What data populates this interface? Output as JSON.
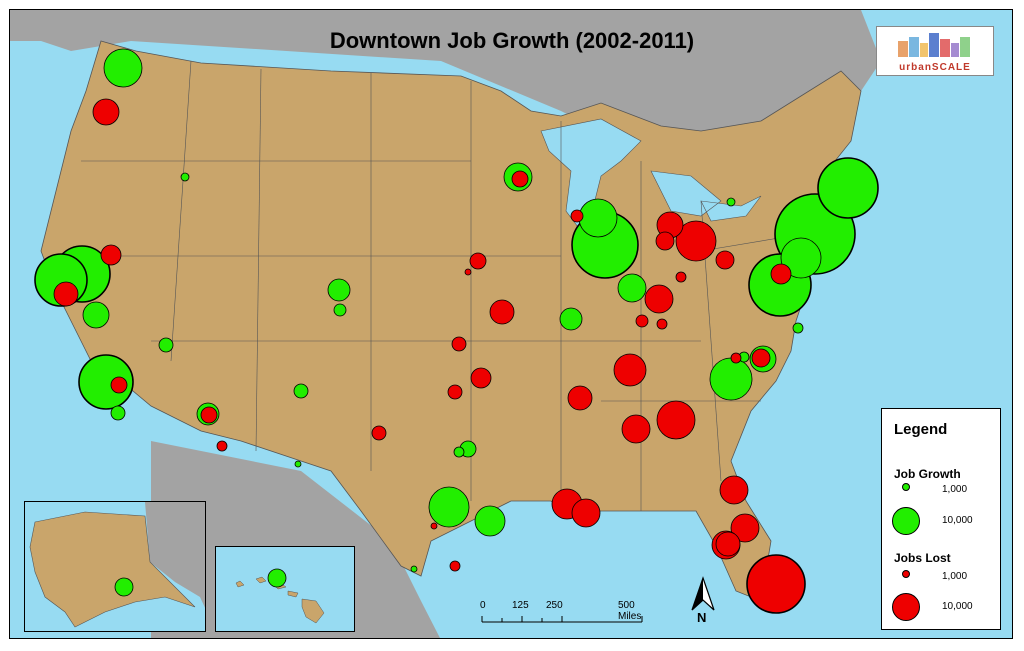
{
  "title": "Downtown Job Growth (2002-2011)",
  "logo": {
    "text": "urbanSCALE"
  },
  "colors": {
    "growth": "#22ee00",
    "lost": "#ee0000",
    "land": "#c9a56b",
    "water": "#97dbf2",
    "other_land": "#a3a3a3"
  },
  "legend": {
    "title": "Legend",
    "growth_heading": "Job Growth",
    "lost_heading": "Jobs Lost",
    "small_value": "1,000",
    "large_value": "10,000"
  },
  "scale_bar": {
    "labels": [
      "0",
      "125",
      "250",
      "500 Miles"
    ]
  },
  "north_arrow": {
    "label": "N"
  },
  "insets": [
    "Alaska",
    "Hawaii"
  ]
}
